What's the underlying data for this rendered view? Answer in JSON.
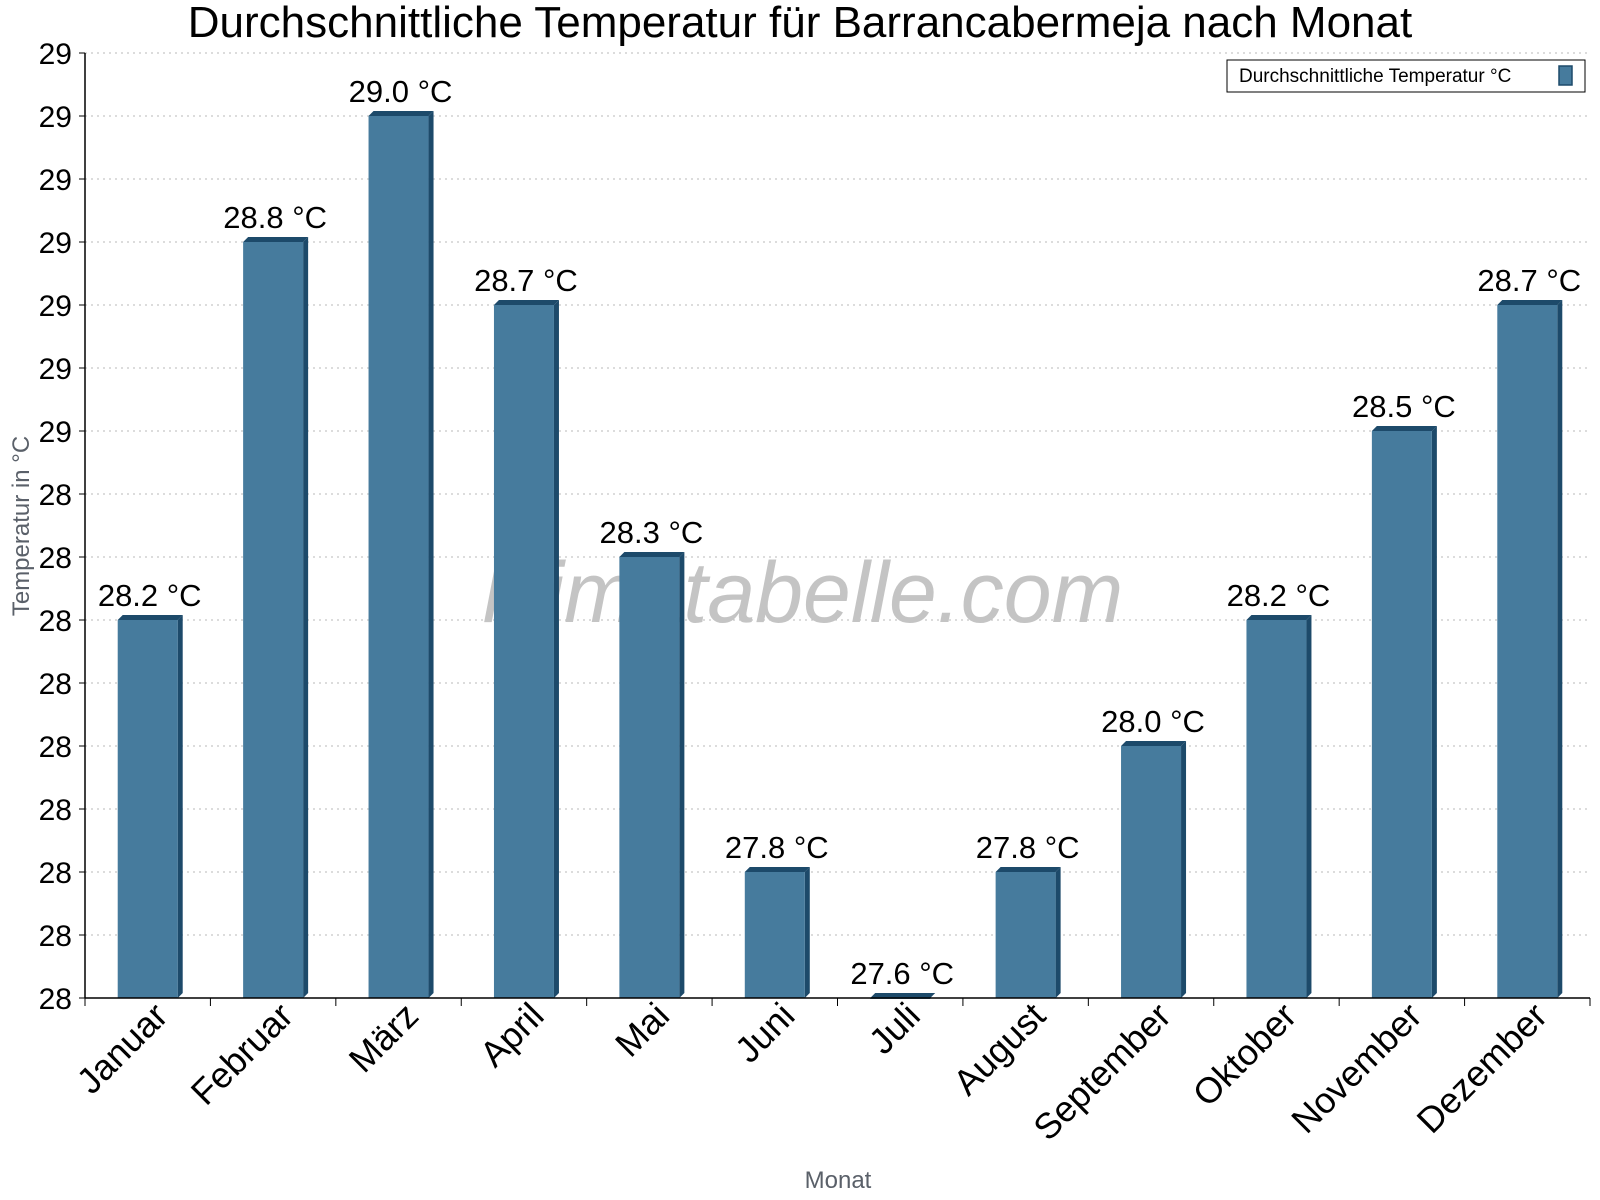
{
  "chart_data": {
    "type": "bar",
    "title": "Durchschnittliche Temperatur für Barrancabermeja nach Monat",
    "xlabel": "Monat",
    "ylabel": "Temperatur in °C",
    "categories": [
      "Januar",
      "Februar",
      "März",
      "April",
      "Mai",
      "Juni",
      "Juli",
      "August",
      "September",
      "Oktober",
      "November",
      "Dezember"
    ],
    "series": [
      {
        "name": "Durchschnittliche Temperatur °C",
        "values": [
          28.2,
          28.8,
          29.0,
          28.7,
          28.3,
          27.8,
          27.6,
          27.8,
          28.0,
          28.2,
          28.5,
          28.7
        ],
        "labels": [
          "28.2 °C",
          "28.8 °C",
          "29.0 °C",
          "28.7 °C",
          "28.3 °C",
          "27.8 °C",
          "27.6 °C",
          "27.8 °C",
          "28.0 °C",
          "28.2 °C",
          "28.5 °C",
          "28.7 °C"
        ]
      }
    ],
    "ylim": [
      27.6,
      29.1
    ],
    "yticks": [
      27.6,
      27.7,
      27.8,
      27.9,
      28.0,
      28.1,
      28.2,
      28.3,
      28.4,
      28.5,
      28.6,
      28.7,
      28.8,
      28.9,
      29.0,
      29.1
    ],
    "ytick_labels": [
      "28",
      "28",
      "28",
      "28",
      "28",
      "28",
      "28",
      "28",
      "28",
      "29",
      "29",
      "29",
      "29",
      "29",
      "29",
      "29"
    ],
    "grid": true,
    "legend_position": "top-right",
    "bar_color": "#467b9d",
    "bar_edge_color": "#1d4a6a",
    "watermark": "klimatabelle.com"
  }
}
